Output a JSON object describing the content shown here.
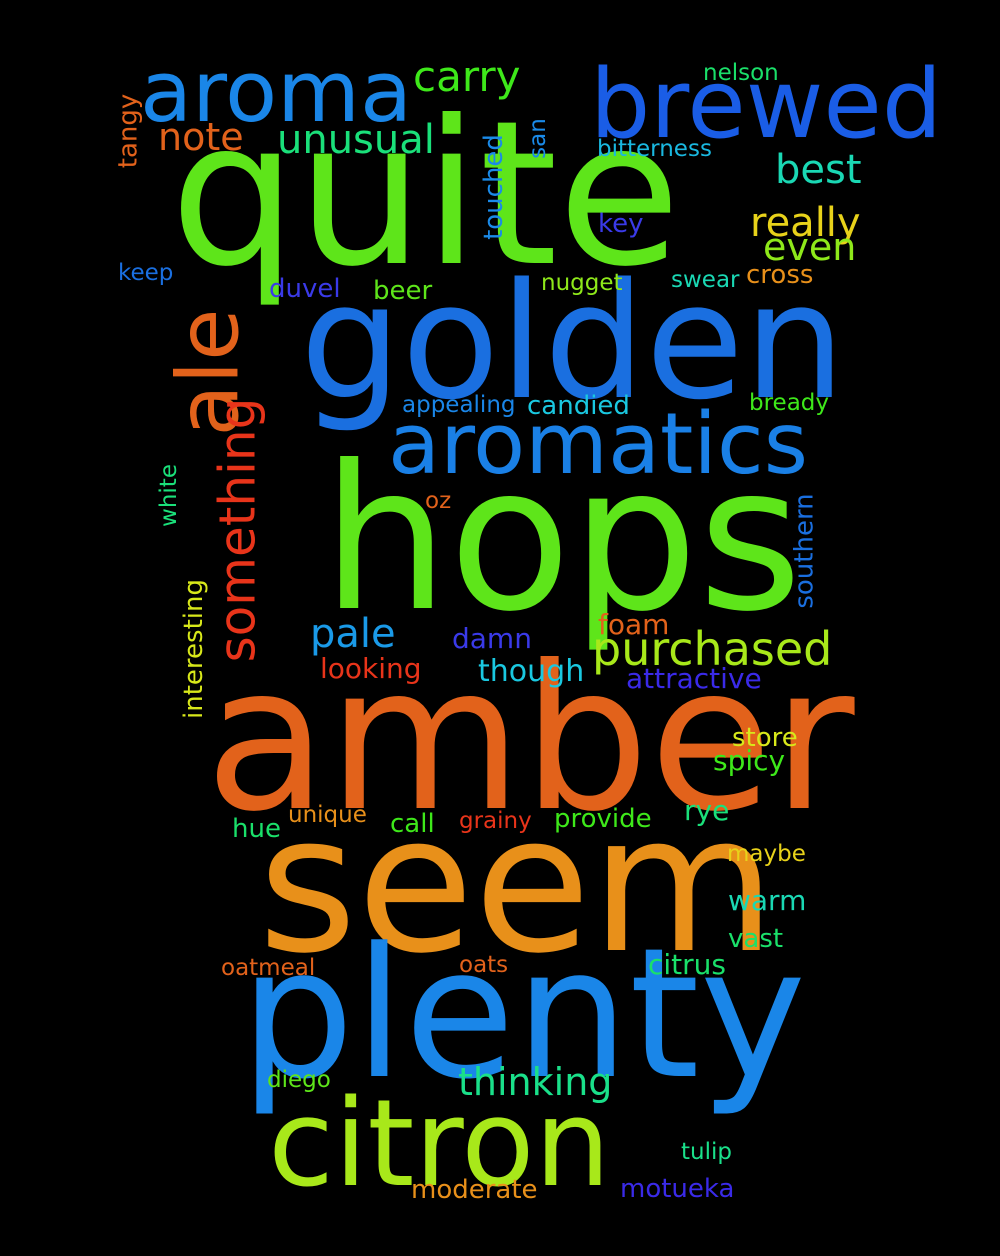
{
  "words": [
    {
      "text": "quite",
      "color": "#5ee51a"
    },
    {
      "text": "golden",
      "color": "#1a6fe0"
    },
    {
      "text": "hops",
      "color": "#5ee51a"
    },
    {
      "text": "amber",
      "color": "#e2621b"
    },
    {
      "text": "seem",
      "color": "#e8901a"
    },
    {
      "text": "plenty",
      "color": "#1a86e8"
    },
    {
      "text": "citron",
      "color": "#a8e81a"
    },
    {
      "text": "brewed",
      "color": "#1a5de6"
    },
    {
      "text": "aroma",
      "color": "#1a86e8"
    },
    {
      "text": "aromatics",
      "color": "#1a80e6"
    },
    {
      "text": "ale",
      "color": "#e2621b"
    },
    {
      "text": "something",
      "color": "#e8341a"
    },
    {
      "text": "purchased",
      "color": "#a8e81a"
    },
    {
      "text": "carry",
      "color": "#3ee81a"
    },
    {
      "text": "unusual",
      "color": "#1ae07a"
    },
    {
      "text": "note",
      "color": "#e2621b"
    },
    {
      "text": "best",
      "color": "#1ad8b4"
    },
    {
      "text": "really",
      "color": "#e8d21a"
    },
    {
      "text": "even",
      "color": "#8ee81a"
    },
    {
      "text": "pale",
      "color": "#1a9ae8"
    },
    {
      "text": "thinking",
      "color": "#1ae08a"
    },
    {
      "text": "tangy",
      "color": "#e2621b"
    },
    {
      "text": "nelson",
      "color": "#1ae06a"
    },
    {
      "text": "bitterness",
      "color": "#1ab8e0"
    },
    {
      "text": "san",
      "color": "#1a8ae8"
    },
    {
      "text": "touched",
      "color": "#1a8ae8"
    },
    {
      "text": "key",
      "color": "#3a3ae8"
    },
    {
      "text": "keep",
      "color": "#1a6fe0"
    },
    {
      "text": "duvel",
      "color": "#3a3ae8"
    },
    {
      "text": "beer",
      "color": "#5ee51a"
    },
    {
      "text": "nugget",
      "color": "#8ee81a"
    },
    {
      "text": "swear",
      "color": "#1ad8b4"
    },
    {
      "text": "cross",
      "color": "#e8901a"
    },
    {
      "text": "appealing",
      "color": "#1a86e8"
    },
    {
      "text": "candied",
      "color": "#1ac8e0"
    },
    {
      "text": "bready",
      "color": "#3ee81a"
    },
    {
      "text": "white",
      "color": "#1ae07a"
    },
    {
      "text": "oz",
      "color": "#e2621b"
    },
    {
      "text": "southern",
      "color": "#1a6fe0"
    },
    {
      "text": "interesting",
      "color": "#d8e81a"
    },
    {
      "text": "damn",
      "color": "#3a3ae8"
    },
    {
      "text": "foam",
      "color": "#e2621b"
    },
    {
      "text": "looking",
      "color": "#e8341a"
    },
    {
      "text": "though",
      "color": "#1ac8e0"
    },
    {
      "text": "attractive",
      "color": "#3a2ae8"
    },
    {
      "text": "store",
      "color": "#d8e81a"
    },
    {
      "text": "spicy",
      "color": "#3ee81a"
    },
    {
      "text": "rye",
      "color": "#1ae07a"
    },
    {
      "text": "hue",
      "color": "#1ae06a"
    },
    {
      "text": "unique",
      "color": "#e8901a"
    },
    {
      "text": "call",
      "color": "#3ee81a"
    },
    {
      "text": "grainy",
      "color": "#e8341a"
    },
    {
      "text": "provide",
      "color": "#3ee81a"
    },
    {
      "text": "maybe",
      "color": "#e8d21a"
    },
    {
      "text": "warm",
      "color": "#1ad8b4"
    },
    {
      "text": "vast",
      "color": "#1ae06a"
    },
    {
      "text": "oatmeal",
      "color": "#e2621b"
    },
    {
      "text": "oats",
      "color": "#e2621b"
    },
    {
      "text": "citrus",
      "color": "#1ae06a"
    },
    {
      "text": "diego",
      "color": "#5ee51a"
    },
    {
      "text": "tulip",
      "color": "#1ae08a"
    },
    {
      "text": "moderate",
      "color": "#e8901a"
    },
    {
      "text": "motueka",
      "color": "#3a2ae8"
    }
  ]
}
